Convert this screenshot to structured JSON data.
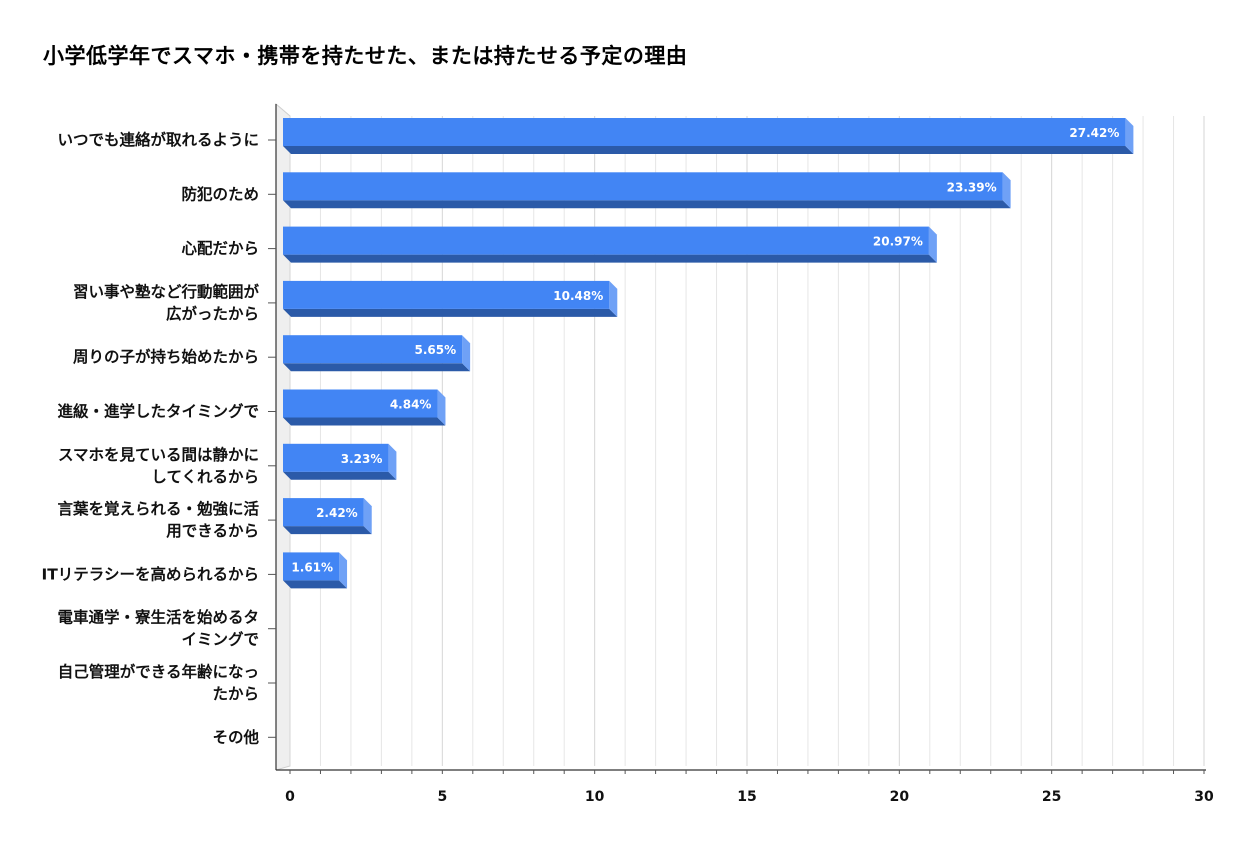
{
  "chart_data": {
    "type": "bar",
    "orientation": "horizontal",
    "title": "小学低学年でスマホ・携帯を持たせた、または持たせる予定の理由",
    "categories": [
      [
        "いつでも連絡が取れるように"
      ],
      [
        "防犯のため"
      ],
      [
        "心配だから"
      ],
      [
        "習い事や塾など行動範囲が",
        "広がったから"
      ],
      [
        "周りの子が持ち始めたから"
      ],
      [
        "進級・進学したタイミングで"
      ],
      [
        "スマホを見ている間は静かに",
        "してくれるから"
      ],
      [
        "言葉を覚えられる・勉強に活",
        "用できるから"
      ],
      [
        "ITリテラシーを高められるから"
      ],
      [
        "電車通学・寮生活を始めるタ",
        "イミングで"
      ],
      [
        "自己管理ができる年齢になっ",
        "たから"
      ],
      [
        "その他"
      ]
    ],
    "values": [
      27.42,
      23.39,
      20.97,
      10.48,
      5.65,
      4.84,
      3.23,
      2.42,
      1.61,
      0,
      0,
      0
    ],
    "data_labels": [
      "27.42%",
      "23.39%",
      "20.97%",
      "10.48%",
      "5.65%",
      "4.84%",
      "3.23%",
      "2.42%",
      "1.61%",
      "",
      "",
      ""
    ],
    "xlim": [
      0,
      30
    ],
    "xticks": [
      0,
      5,
      10,
      15,
      20,
      25,
      30
    ],
    "xlabel": "",
    "ylabel": "",
    "grid": true,
    "legend": "none",
    "style": "3d",
    "colors": {
      "bar_face": "#4285f4",
      "bar_side": "#6fa1f6",
      "bar_bottom": "#2b5aa8"
    }
  }
}
